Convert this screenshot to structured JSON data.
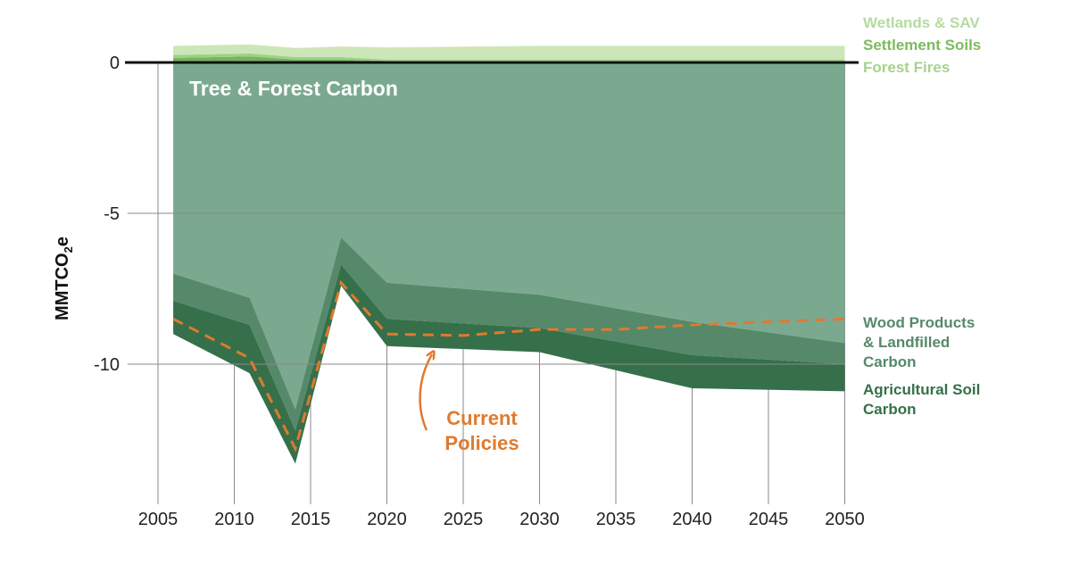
{
  "chart_data": {
    "type": "area",
    "ylabel_main": "MMTCO",
    "ylabel_sub": "2",
    "ylabel_tail": "e",
    "ylim": [
      -14,
      1
    ],
    "xlim": [
      2003,
      2050
    ],
    "y_ticks": [
      {
        "value": 0,
        "label": "0"
      },
      {
        "value": -5,
        "label": "-5"
      },
      {
        "value": -10,
        "label": "-10"
      }
    ],
    "x_ticks": [
      {
        "value": 2005,
        "label": "2005"
      },
      {
        "value": 2010,
        "label": "2010"
      },
      {
        "value": 2015,
        "label": "2015"
      },
      {
        "value": 2020,
        "label": "2020"
      },
      {
        "value": 2025,
        "label": "2025"
      },
      {
        "value": 2030,
        "label": "2030"
      },
      {
        "value": 2035,
        "label": "2035"
      },
      {
        "value": 2040,
        "label": "2040"
      },
      {
        "value": 2045,
        "label": "2045"
      },
      {
        "value": 2050,
        "label": "2050"
      }
    ],
    "x": [
      2006,
      2011,
      2014,
      2017,
      2020,
      2030,
      2040,
      2050
    ],
    "positive_series": [
      {
        "name": "Forest Fires",
        "color": "#72b55e",
        "values": [
          0.15,
          0.2,
          0.1,
          0.1,
          0.05,
          0.05,
          0.05,
          0.05
        ]
      },
      {
        "name": "Settlement Soils",
        "color": "#9fd088",
        "values": [
          0.1,
          0.1,
          0.08,
          0.08,
          0.05,
          0.05,
          0.05,
          0.05
        ]
      },
      {
        "name": "Wetlands & SAV",
        "color": "#cde6b8",
        "values": [
          0.3,
          0.3,
          0.3,
          0.35,
          0.4,
          0.45,
          0.45,
          0.45
        ]
      }
    ],
    "negative_series": [
      {
        "name": "Tree & Forest Carbon",
        "color": "#7ba98f",
        "values": [
          -7.0,
          -7.8,
          -11.5,
          -5.8,
          -7.3,
          -7.7,
          -8.6,
          -9.3
        ]
      },
      {
        "name": "Wood Products & Landfilled Carbon",
        "color": "#55896a",
        "values": [
          -0.9,
          -0.9,
          -0.7,
          -0.9,
          -1.2,
          -1.1,
          -1.1,
          -0.7
        ]
      },
      {
        "name": "Agricultural Soil Carbon",
        "color": "#35704a",
        "values": [
          -1.1,
          -1.6,
          -1.1,
          -0.7,
          -0.9,
          -0.8,
          -1.1,
          -0.9
        ]
      }
    ],
    "current_policies": {
      "name": "Current Policies",
      "color": "#e07a2e",
      "x": [
        2006,
        2011,
        2014,
        2017,
        2020,
        2025,
        2030,
        2035,
        2040,
        2045,
        2050
      ],
      "values": [
        -8.5,
        -9.8,
        -12.8,
        -7.3,
        -9.0,
        -9.05,
        -8.85,
        -8.85,
        -8.7,
        -8.6,
        -8.5
      ]
    },
    "inline_label": "Tree & Forest Carbon",
    "legend_labels": {
      "wetlands": "Wetlands & SAV",
      "settlement": "Settlement Soils",
      "forest_fires": "Forest Fires",
      "wood_line1": "Wood Products",
      "wood_line2": "& Landfilled",
      "wood_line3": "Carbon",
      "ag_line1": "Agricultural Soil",
      "ag_line2": "Carbon"
    },
    "legend_colors": {
      "wetlands": "#b5dba0",
      "settlement": "#7cbb5e",
      "forest_fires": "#a6d28e",
      "wood": "#55896a",
      "ag": "#35704a"
    },
    "annotation": {
      "line1": "Current",
      "line2": "Policies",
      "color": "#e07a2e"
    }
  }
}
